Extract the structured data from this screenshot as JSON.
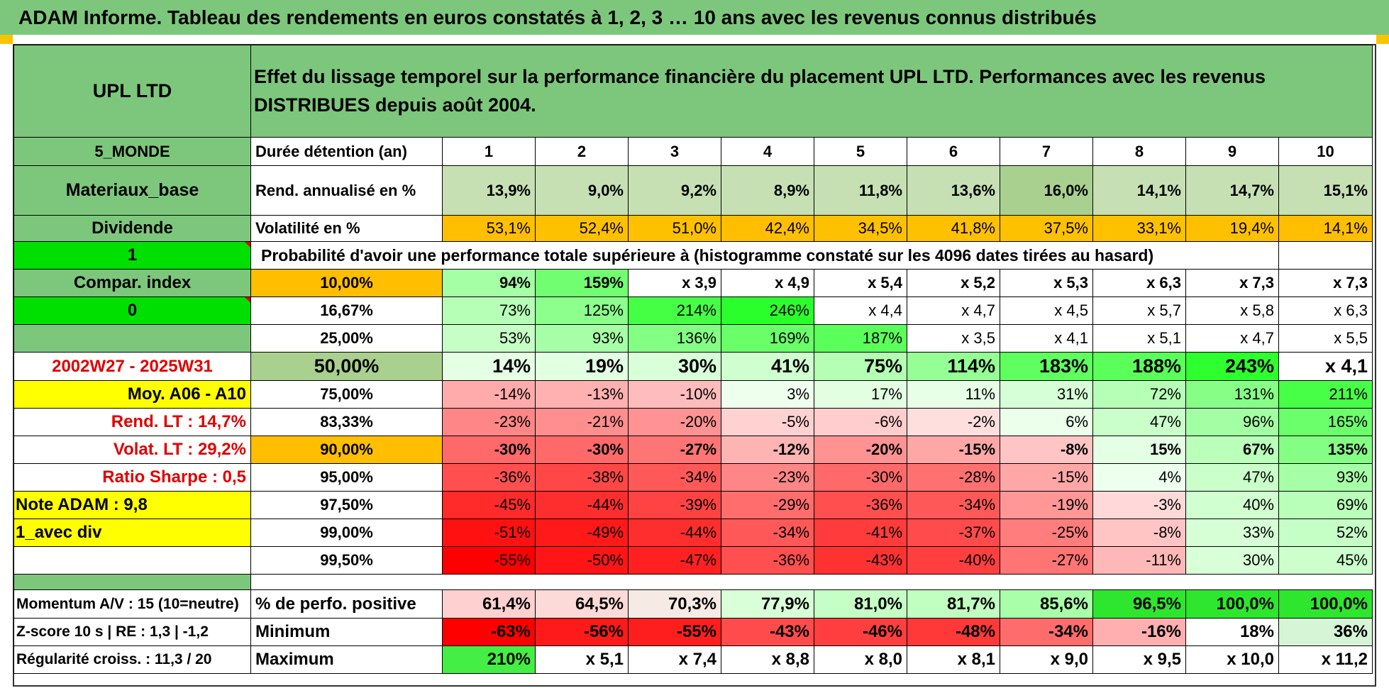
{
  "header": {
    "title": "ADAM Informe. Tableau des rendements en euros constatés à 1, 2, 3 … 10 ans avec les revenus connus distribués"
  },
  "left": {
    "name": "UPL LTD",
    "zone": "5_MONDE",
    "sector": "Materiaux_base",
    "income": "Dividende",
    "flag1": "1",
    "compar": "Compar. index",
    "flag2": "0",
    "blank": "",
    "period": "2002W27 - 2025W31",
    "moy": "Moy. A06 - A10",
    "rend_lt": "Rend. LT :    14,7%",
    "volat_lt": "Volat. LT :    29,2%",
    "sharpe": "Ratio Sharpe :     0,5",
    "note": "Note ADAM : 9,8",
    "div": "1_avec div",
    "momentum": "Momentum A/V : 15 (10=neutre)",
    "zscore": "Z-score 10 s | RE : 1,3 | -1,2",
    "regularite": "Régularité croiss. : 11,3 / 20"
  },
  "main": {
    "title": "Effet du lissage temporel sur la performance financière du placement UPL LTD. Performances avec les revenus DISTRIBUES depuis août 2004.",
    "duree_label": "Durée détention (an)",
    "years": [
      "1",
      "2",
      "3",
      "4",
      "5",
      "6",
      "7",
      "8",
      "9",
      "10"
    ],
    "rend_label": "Rend. annualisé en %",
    "rend": [
      "13,9%",
      "9,0%",
      "9,2%",
      "8,9%",
      "11,8%",
      "13,6%",
      "16,0%",
      "14,1%",
      "14,7%",
      "15,1%"
    ],
    "vol_label": "Volatilité en %",
    "vol": [
      "53,1%",
      "52,4%",
      "51,0%",
      "42,4%",
      "34,5%",
      "41,8%",
      "37,5%",
      "33,1%",
      "19,4%",
      "14,1%"
    ],
    "prob_title": "Probabilité d'avoir une performance totale supérieure à (histogramme constaté sur les 4096 dates tirées au hasard)",
    "quantiles": [
      {
        "p": "10,00%",
        "vals": [
          "94%",
          "159%",
          "x 3,9",
          "x 4,9",
          "x 5,4",
          "x 5,2",
          "x 5,3",
          "x 6,3",
          "x 7,3",
          "x 7,3"
        ]
      },
      {
        "p": "16,67%",
        "vals": [
          "73%",
          "125%",
          "214%",
          "246%",
          "x 4,4",
          "x 4,7",
          "x 4,5",
          "x 5,7",
          "x 5,8",
          "x 6,3"
        ]
      },
      {
        "p": "25,00%",
        "vals": [
          "53%",
          "93%",
          "136%",
          "169%",
          "187%",
          "x 3,5",
          "x 4,1",
          "x 5,1",
          "x 4,7",
          "x 5,5"
        ]
      },
      {
        "p": "50,00%",
        "vals": [
          "14%",
          "19%",
          "30%",
          "41%",
          "75%",
          "114%",
          "183%",
          "188%",
          "243%",
          "x 4,1"
        ]
      },
      {
        "p": "75,00%",
        "vals": [
          "-14%",
          "-13%",
          "-10%",
          "3%",
          "17%",
          "11%",
          "31%",
          "72%",
          "131%",
          "211%"
        ]
      },
      {
        "p": "83,33%",
        "vals": [
          "-23%",
          "-21%",
          "-20%",
          "-5%",
          "-6%",
          "-2%",
          "6%",
          "47%",
          "96%",
          "165%"
        ]
      },
      {
        "p": "90,00%",
        "vals": [
          "-30%",
          "-30%",
          "-27%",
          "-12%",
          "-20%",
          "-15%",
          "-8%",
          "15%",
          "67%",
          "135%"
        ]
      },
      {
        "p": "95,00%",
        "vals": [
          "-36%",
          "-38%",
          "-34%",
          "-23%",
          "-30%",
          "-28%",
          "-15%",
          "4%",
          "47%",
          "93%"
        ]
      },
      {
        "p": "97,50%",
        "vals": [
          "-45%",
          "-44%",
          "-39%",
          "-29%",
          "-36%",
          "-34%",
          "-19%",
          "-3%",
          "40%",
          "69%"
        ]
      },
      {
        "p": "99,00%",
        "vals": [
          "-51%",
          "-49%",
          "-44%",
          "-34%",
          "-41%",
          "-37%",
          "-25%",
          "-8%",
          "33%",
          "52%"
        ]
      },
      {
        "p": "99,50%",
        "vals": [
          "-55%",
          "-50%",
          "-47%",
          "-36%",
          "-43%",
          "-40%",
          "-27%",
          "-11%",
          "30%",
          "45%"
        ]
      }
    ],
    "positive_label": "% de perfo. positive",
    "positive": [
      "61,4%",
      "64,5%",
      "70,3%",
      "77,9%",
      "81,0%",
      "81,7%",
      "85,6%",
      "96,5%",
      "100,0%",
      "100,0%"
    ],
    "min_label": "Minimum",
    "min": [
      "-63%",
      "-56%",
      "-55%",
      "-43%",
      "-46%",
      "-48%",
      "-34%",
      "-16%",
      "18%",
      "36%"
    ],
    "max_label": "Maximum",
    "max": [
      "210%",
      "x 5,1",
      "x 7,4",
      "x 8,8",
      "x 8,0",
      "x 8,1",
      "x 9,0",
      "x 9,5",
      "x 10,0",
      "x 11,2"
    ]
  },
  "colors": {
    "header_green": "#7dc77d",
    "bright_green": "#00e000",
    "orange": "#ffbe00",
    "yellow": "#ffff00",
    "red_text": "#e00000",
    "rend_bg": "#c6e0b4",
    "median_p_bg": "#a9d08e"
  }
}
